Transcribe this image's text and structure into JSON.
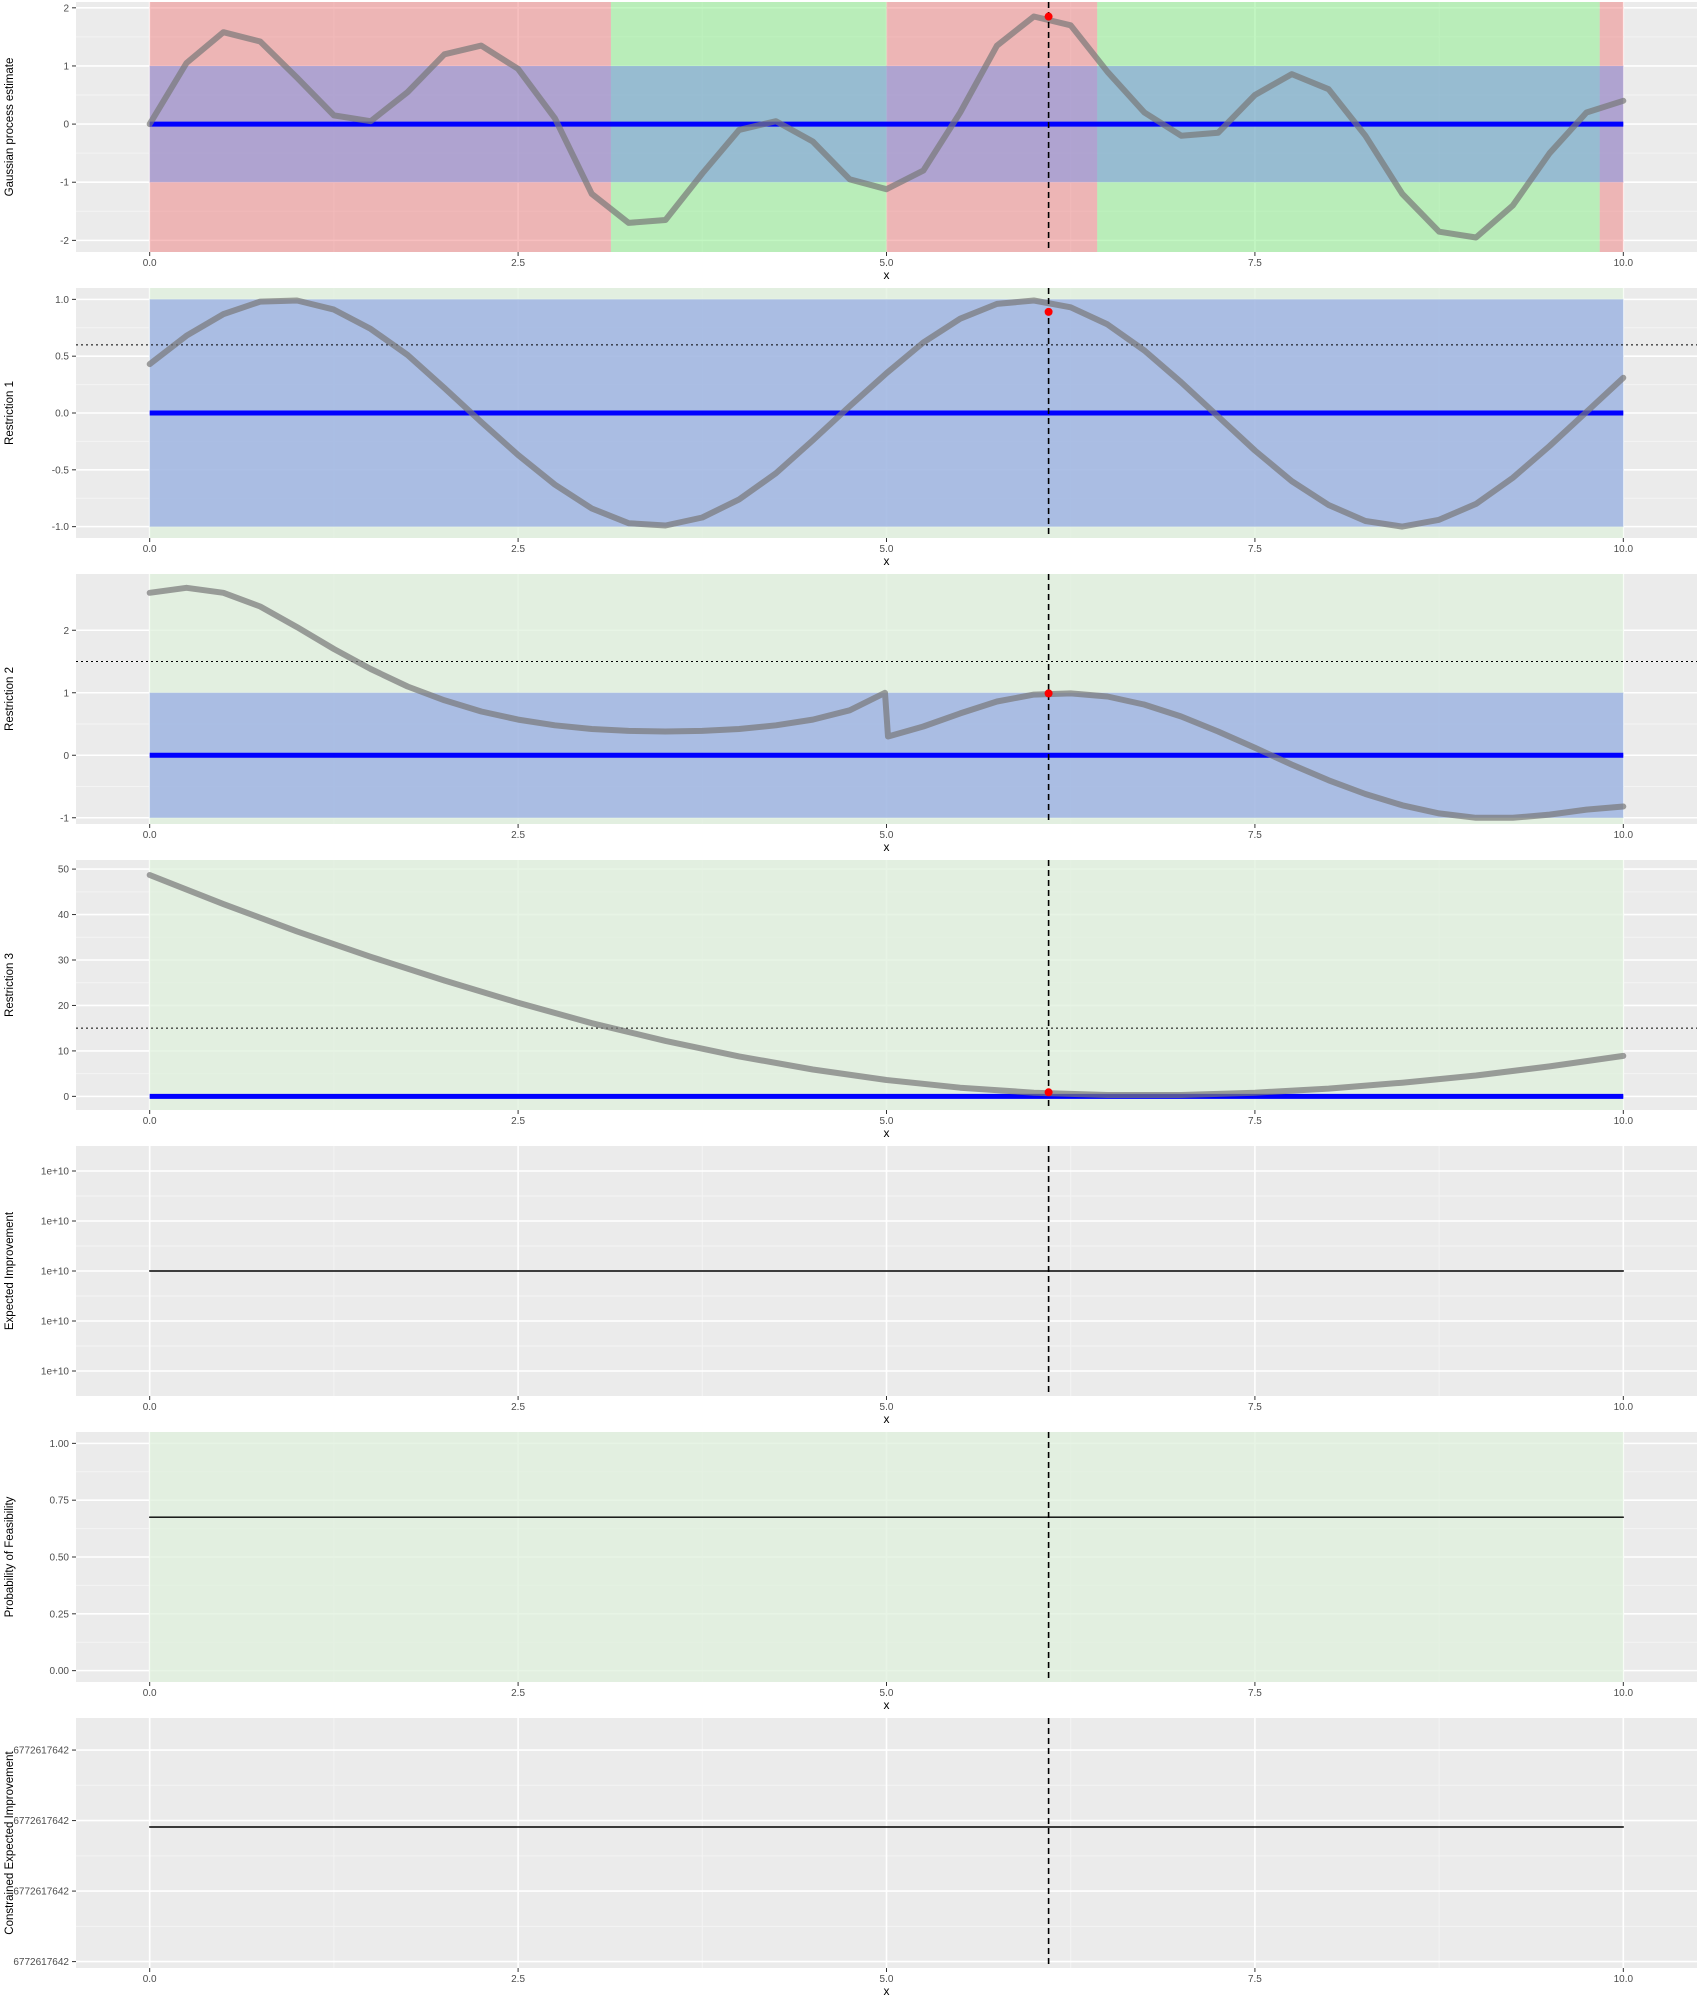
{
  "colors": {
    "panel_bg": "#EBEBEB",
    "grid_major": "#FFFFFF",
    "grid_minor": "#F4F4F4",
    "infeasible_red": "#F08080",
    "feasible_green": "#90EE90",
    "feasible_light_green": "#DFF0DC",
    "uncertainty_band": "#7B93E6",
    "mean_line_blue": "#0000FF",
    "curve_gray": "#777777",
    "selected_point": "#FF0000",
    "tick_text": "#4D4D4D"
  },
  "x_axis": {
    "label": "x",
    "ticks": [
      "0.0",
      "2.5",
      "5.0",
      "7.5",
      "10.0"
    ]
  },
  "chart_data": [
    {
      "type": "line",
      "ylabel": "Gaussian process estimate",
      "ylim": [
        -2.2,
        2.1
      ],
      "yticks": [
        -2,
        -1,
        0,
        1,
        2
      ],
      "ytick_labels": [
        "-2",
        "-1",
        "0",
        "1",
        "2"
      ],
      "feasibility_regions": [
        {
          "from": 0.0,
          "to": 3.13,
          "status": "infeasible"
        },
        {
          "from": 3.13,
          "to": 5.0,
          "status": "feasible"
        },
        {
          "from": 5.0,
          "to": 6.43,
          "status": "infeasible"
        },
        {
          "from": 6.43,
          "to": 9.84,
          "status": "feasible"
        },
        {
          "from": 9.84,
          "to": 10.0,
          "status": "infeasible"
        }
      ],
      "band": [
        -1,
        1
      ],
      "mean": 0,
      "series": [
        {
          "x": [
            0,
            0.25,
            0.5,
            0.75,
            1.0,
            1.25,
            1.5,
            1.75,
            2.0,
            2.25,
            2.5,
            2.75,
            3.0,
            3.25,
            3.5,
            3.75,
            4.0,
            4.25,
            4.5,
            4.75,
            5.0,
            5.25,
            5.5,
            5.75,
            6.0,
            6.25,
            6.5,
            6.75,
            7.0,
            7.25,
            7.5,
            7.75,
            8.0,
            8.25,
            8.5,
            8.75,
            9.0,
            9.25,
            9.5,
            9.75,
            10.0
          ],
          "y": [
            0.0,
            1.05,
            1.58,
            1.42,
            0.8,
            0.15,
            0.05,
            0.55,
            1.2,
            1.35,
            0.95,
            0.1,
            -1.2,
            -1.7,
            -1.65,
            -0.85,
            -0.1,
            0.05,
            -0.3,
            -0.95,
            -1.12,
            -0.8,
            0.2,
            1.35,
            1.85,
            1.7,
            0.9,
            0.2,
            -0.2,
            -0.15,
            0.5,
            0.86,
            0.6,
            -0.2,
            -1.2,
            -1.85,
            -1.95,
            -1.4,
            -0.5,
            0.2,
            0.4
          ]
        }
      ],
      "selected_x": 6.1,
      "selected_y": 1.85
    },
    {
      "type": "line",
      "ylabel": "Restriction 1",
      "ylim": [
        -1.1,
        1.1
      ],
      "yticks": [
        -1.0,
        -0.5,
        0.0,
        0.5,
        1.0
      ],
      "ytick_labels": [
        "-1.0",
        "-0.5",
        "0.0",
        "0.5",
        "1.0"
      ],
      "feasibility_regions": [
        {
          "from": 0.0,
          "to": 10.0,
          "status": "feasible_light"
        }
      ],
      "band": [
        -1,
        1
      ],
      "mean": 0,
      "threshold": 0.6,
      "series": [
        {
          "x": [
            0,
            0.25,
            0.5,
            0.75,
            1.0,
            1.25,
            1.5,
            1.75,
            2.0,
            2.25,
            2.5,
            2.75,
            3.0,
            3.25,
            3.5,
            3.75,
            4.0,
            4.25,
            4.5,
            4.75,
            5.0,
            5.25,
            5.5,
            5.75,
            6.0,
            6.25,
            6.5,
            6.75,
            7.0,
            7.25,
            7.5,
            7.75,
            8.0,
            8.25,
            8.5,
            8.75,
            9.0,
            9.25,
            9.5,
            9.75,
            10.0
          ],
          "y": [
            0.43,
            0.68,
            0.87,
            0.98,
            0.99,
            0.91,
            0.74,
            0.51,
            0.22,
            -0.08,
            -0.37,
            -0.63,
            -0.84,
            -0.97,
            -0.99,
            -0.92,
            -0.76,
            -0.53,
            -0.24,
            0.06,
            0.35,
            0.62,
            0.83,
            0.96,
            0.99,
            0.93,
            0.78,
            0.55,
            0.27,
            -0.03,
            -0.33,
            -0.6,
            -0.81,
            -0.95,
            -1.0,
            -0.94,
            -0.8,
            -0.57,
            -0.29,
            0.01,
            0.31
          ]
        }
      ],
      "selected_x": 6.1,
      "selected_y": 0.89
    },
    {
      "type": "line",
      "ylabel": "Restriction 2",
      "ylim": [
        -1.1,
        2.9
      ],
      "yticks": [
        -1,
        0,
        1,
        2
      ],
      "ytick_labels": [
        "-1",
        "0",
        "1",
        "2"
      ],
      "feasibility_regions": [
        {
          "from": 0.0,
          "to": 10.0,
          "status": "feasible_light"
        }
      ],
      "band": [
        -1,
        1
      ],
      "mean": 0,
      "threshold": 1.5,
      "series": [
        {
          "x": [
            0,
            0.25,
            0.5,
            0.75,
            1.0,
            1.25,
            1.5,
            1.75,
            2.0,
            2.25,
            2.5,
            2.75,
            3.0,
            3.25,
            3.5,
            3.75,
            4.0,
            4.25,
            4.5,
            4.75,
            4.99,
            5.01,
            5.25,
            5.5,
            5.75,
            6.0,
            6.25,
            6.5,
            6.75,
            7.0,
            7.25,
            7.5,
            7.75,
            8.0,
            8.25,
            8.5,
            8.75,
            9.0,
            9.25,
            9.5,
            9.75,
            10.0
          ],
          "y": [
            2.6,
            2.68,
            2.6,
            2.38,
            2.05,
            1.7,
            1.38,
            1.1,
            0.88,
            0.7,
            0.57,
            0.48,
            0.42,
            0.39,
            0.38,
            0.39,
            0.42,
            0.48,
            0.57,
            0.72,
            1.0,
            0.3,
            0.46,
            0.67,
            0.86,
            0.97,
            0.99,
            0.94,
            0.81,
            0.62,
            0.38,
            0.12,
            -0.15,
            -0.4,
            -0.62,
            -0.8,
            -0.93,
            -1.0,
            -1.0,
            -0.95,
            -0.87,
            -0.82
          ]
        }
      ],
      "selected_x": 6.1,
      "selected_y": 0.99
    },
    {
      "type": "line",
      "ylabel": "Restriction 3",
      "ylim": [
        -3,
        52
      ],
      "yticks": [
        0,
        10,
        20,
        30,
        40,
        50
      ],
      "ytick_labels": [
        "0",
        "10",
        "20",
        "30",
        "40",
        "50"
      ],
      "feasibility_regions": [
        {
          "from": 0.0,
          "to": 10.0,
          "status": "feasible_light"
        }
      ],
      "band": [
        -0.3,
        0.3
      ],
      "mean": 0,
      "threshold": 15,
      "series": [
        {
          "x": [
            0,
            0.5,
            1.0,
            1.5,
            2.0,
            2.5,
            3.0,
            3.5,
            4.0,
            4.5,
            5.0,
            5.5,
            6.0,
            6.5,
            7.0,
            7.5,
            8.0,
            8.5,
            9.0,
            9.5,
            10.0
          ],
          "y": [
            48.7,
            42.3,
            36.3,
            30.7,
            25.5,
            20.6,
            16.1,
            12.2,
            8.8,
            5.9,
            3.6,
            1.9,
            0.8,
            0.3,
            0.3,
            0.8,
            1.7,
            3.0,
            4.6,
            6.6,
            8.9
          ]
        }
      ],
      "selected_x": 6.1,
      "selected_y": 0.9
    },
    {
      "type": "line",
      "ylabel": "Expected Improvement",
      "ylim": [
        -0.25,
        2.25
      ],
      "yticks": [
        0,
        0.5,
        1,
        1.5,
        2
      ],
      "ytick_labels": [
        "1e+10",
        "1e+10",
        "1e+10",
        "1e+10",
        "1e+10"
      ],
      "series": [
        {
          "x": [
            0,
            10
          ],
          "y": [
            1,
            1
          ]
        }
      ]
    },
    {
      "type": "line",
      "ylabel": "Probability of Feasibility",
      "ylim": [
        -0.05,
        1.05
      ],
      "yticks": [
        0.0,
        0.25,
        0.5,
        0.75,
        1.0
      ],
      "ytick_labels": [
        "0.00",
        "0.25",
        "0.50",
        "0.75",
        "1.00"
      ],
      "feasibility_regions": [
        {
          "from": 0.0,
          "to": 10.0,
          "status": "feasible_light"
        }
      ],
      "series": [
        {
          "x": [
            0,
            10
          ],
          "y": [
            0.675,
            0.675
          ]
        }
      ]
    },
    {
      "type": "line",
      "ylabel": "Constrained Expected Improvement",
      "ylim": [
        -0.1,
        3.8
      ],
      "yticks": [
        0,
        1.1,
        2.2,
        3.3
      ],
      "ytick_labels": [
        "6772617642",
        "6772617642",
        "6772617642",
        "6772617642"
      ],
      "series": [
        {
          "x": [
            0,
            10
          ],
          "y": [
            2.1,
            2.1
          ]
        }
      ]
    }
  ],
  "shared": {
    "xlim": [
      -0.5,
      10.5
    ],
    "selected_x": 6.1
  }
}
